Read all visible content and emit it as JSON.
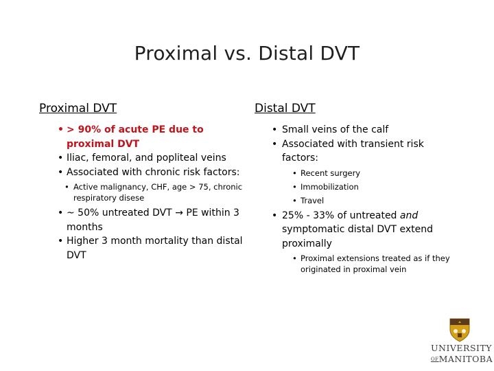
{
  "slide": {
    "title": "Proximal vs. Distal DVT"
  },
  "left": {
    "heading": "Proximal DVT",
    "bullet1": "> 90% of acute PE due to proximal DVT",
    "bullet2": "Iliac, femoral, and popliteal veins",
    "bullet3": "Associated with chronic risk factors:",
    "bullet3_sub1": "Active malignancy, CHF, age > 75, chronic respiratory disese",
    "bullet4_part1": "~ 50% untreated DVT ",
    "bullet4_arrow": "→",
    "bullet4_part2": " PE within 3 months",
    "bullet5": "Higher 3 month mortality than distal DVT"
  },
  "right": {
    "heading": "Distal DVT",
    "bullet1": "Small veins of the calf",
    "bullet2": "Associated with transient risk factors:",
    "bullet2_sub1": "Recent surgery",
    "bullet2_sub2": "Immobilization",
    "bullet2_sub3": "Travel",
    "bullet3_part1": "25% - 33% of untreated ",
    "bullet3_italic": "and",
    "bullet3_part2": " symptomatic distal DVT extend proximally",
    "bullet3_sub1": "Proximal extensions treated as if they originated in proximal vein"
  },
  "logo": {
    "line1": "UNIVERSITY",
    "of": "OF",
    "line2": "MANITOBA",
    "crest_color": "#d4a017"
  }
}
